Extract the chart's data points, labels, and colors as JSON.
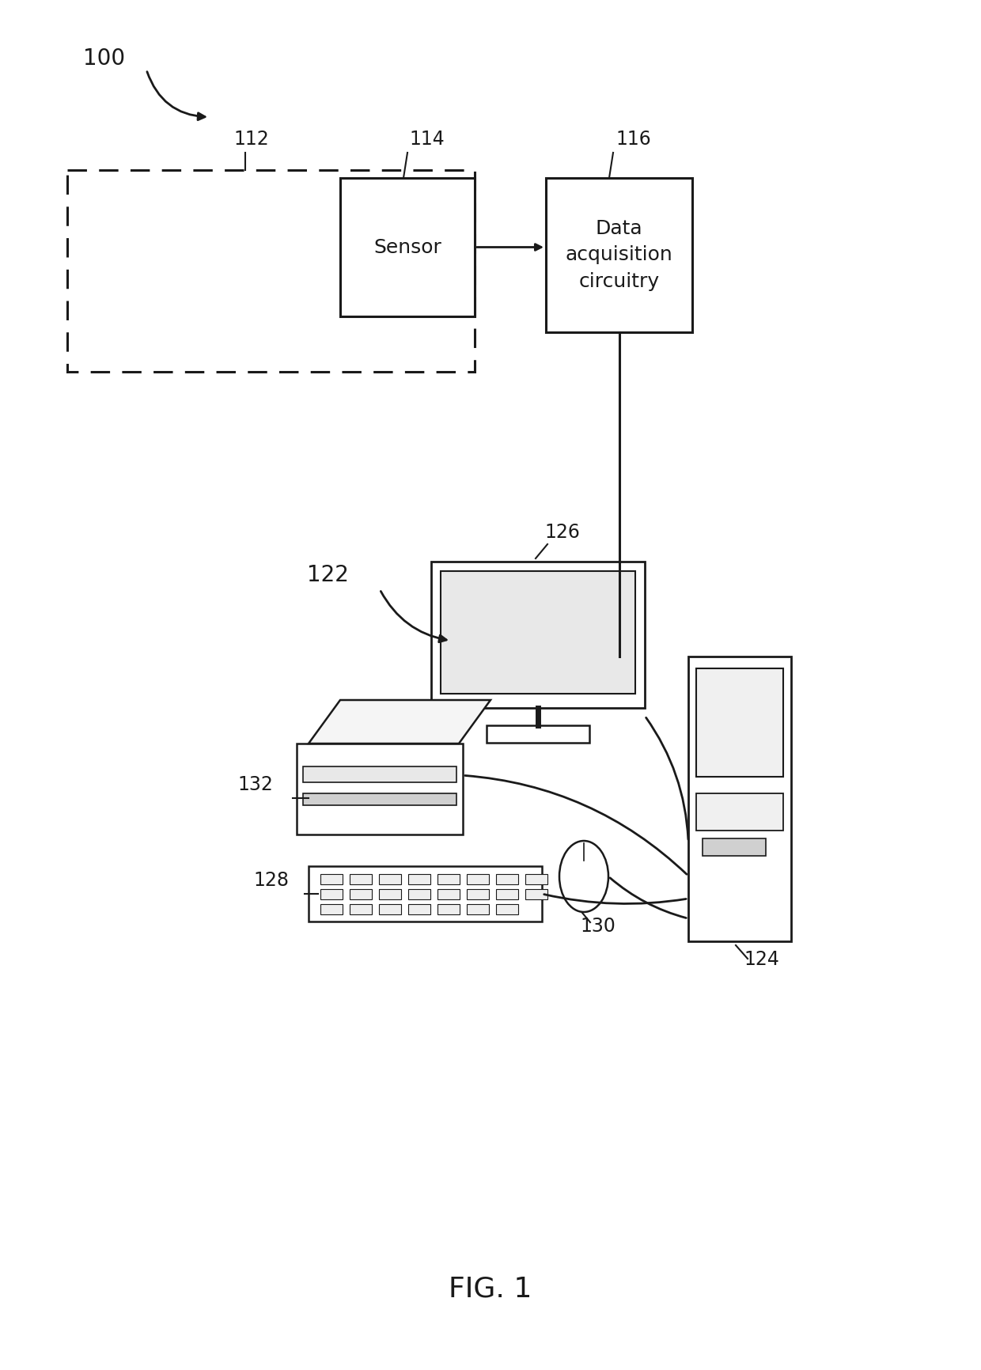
{
  "bg_color": "#ffffff",
  "line_color": "#1a1a1a",
  "fig_label": "FIG. 1",
  "sensor_text": "Sensor",
  "data_acq_text": "Data\nacquisition\ncircuitry"
}
